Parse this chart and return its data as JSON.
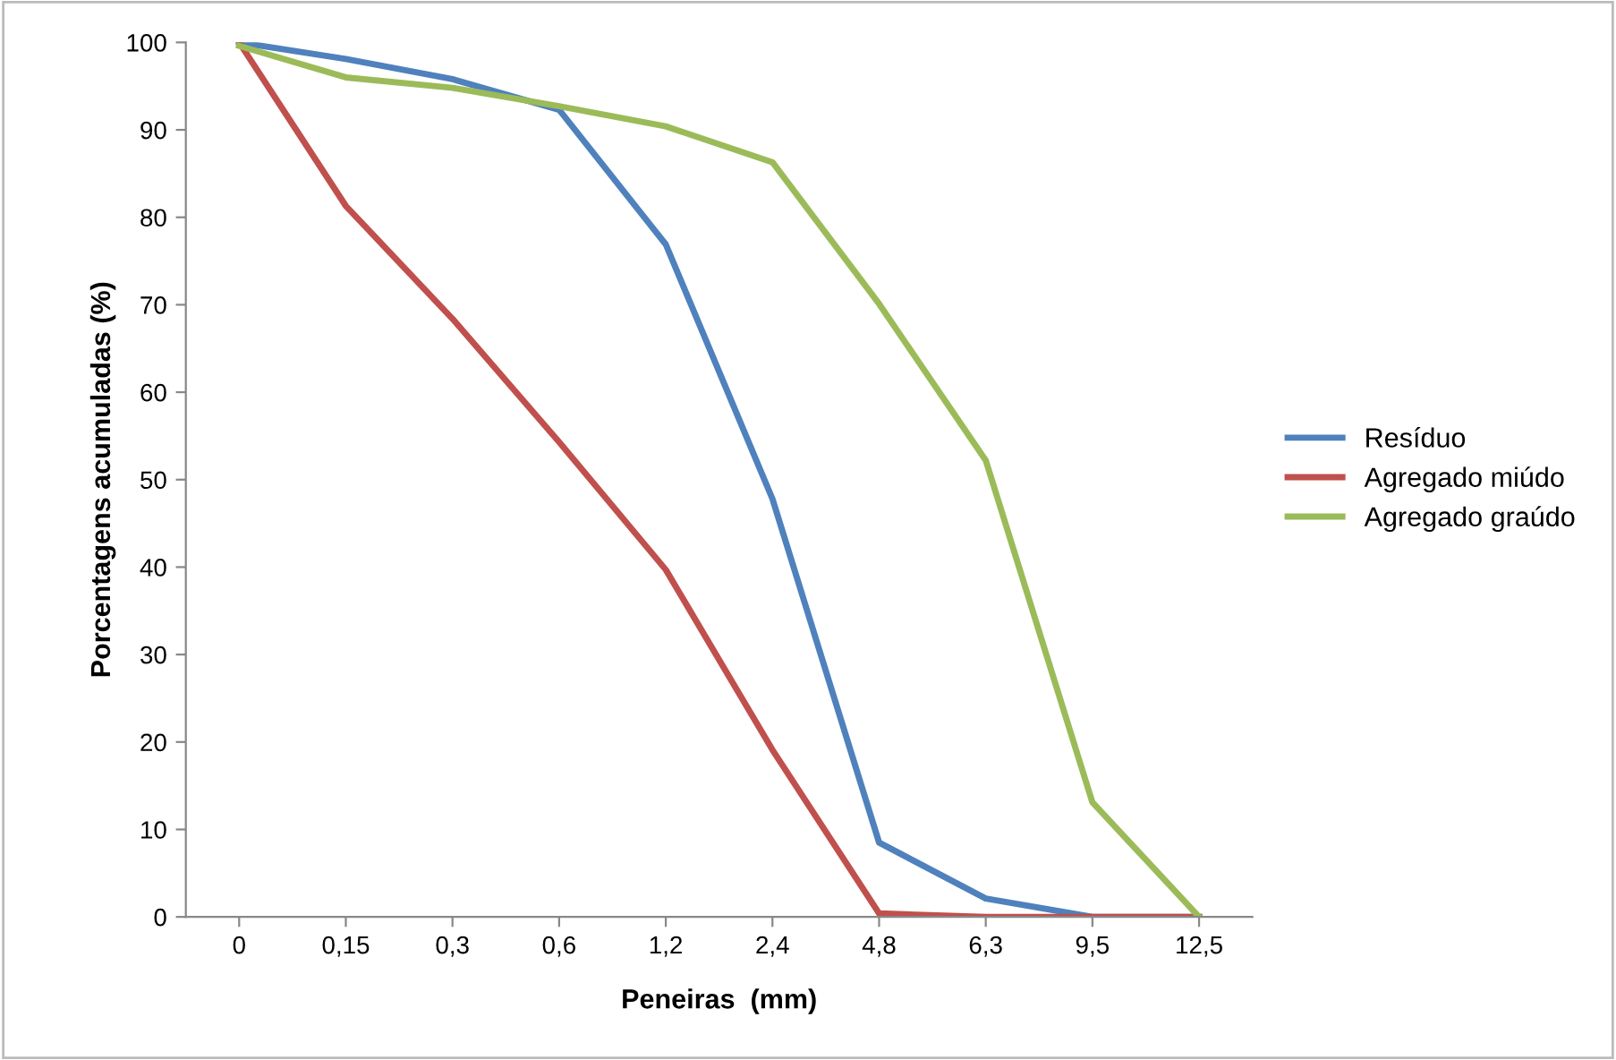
{
  "chart_data": {
    "type": "line",
    "xlabel": "Peneiras  (mm)",
    "ylabel": "Porcentagens acumuladas (%)",
    "categories": [
      "0",
      "0,15",
      "0,3",
      "0,6",
      "1,2",
      "2,4",
      "4,8",
      "6,3",
      "9,5",
      "12,5"
    ],
    "series": [
      {
        "name": "Resíduo",
        "color": "#4f81bd",
        "values": [
          100,
          98.1,
          95.8,
          92.3,
          76.9,
          47.8,
          8.5,
          2.1,
          0,
          0
        ]
      },
      {
        "name": "Agregado miúdo",
        "color": "#c0504d",
        "values": [
          100,
          81.3,
          68.4,
          54.3,
          39.7,
          19.1,
          0.4,
          0,
          0,
          0
        ]
      },
      {
        "name": "Agregado graúdo",
        "color": "#9bbb59",
        "values": [
          99.6,
          96.0,
          94.8,
          92.7,
          90.4,
          86.3,
          70.1,
          52.2,
          13.1,
          0
        ]
      }
    ],
    "ylim": [
      0,
      100
    ],
    "yticks": [
      0,
      10,
      20,
      30,
      40,
      50,
      60,
      70,
      80,
      90,
      100
    ],
    "grid": false,
    "legend": "right",
    "marker": "none",
    "line_style": "solid"
  }
}
